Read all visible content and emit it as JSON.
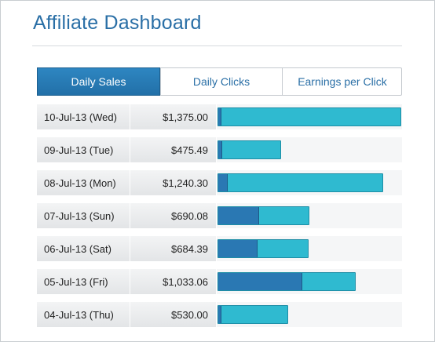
{
  "header": {
    "title": "Affiliate Dashboard"
  },
  "tabs": [
    {
      "label": "Daily Sales",
      "active": true
    },
    {
      "label": "Daily Clicks",
      "active": false
    },
    {
      "label": "Earnings per Click",
      "active": false
    }
  ],
  "sales": {
    "rows": [
      {
        "date": "10-Jul-13 (Wed)",
        "amount": "$1,375.00",
        "total": 1375.0,
        "dark_share": 0.01
      },
      {
        "date": "09-Jul-13 (Tue)",
        "amount": "$475.49",
        "total": 475.49,
        "dark_share": 0.05
      },
      {
        "date": "08-Jul-13 (Mon)",
        "amount": "$1,240.30",
        "total": 1240.3,
        "dark_share": 0.05
      },
      {
        "date": "07-Jul-13 (Sun)",
        "amount": "$690.08",
        "total": 690.08,
        "dark_share": 0.44
      },
      {
        "date": "06-Jul-13 (Sat)",
        "amount": "$684.39",
        "total": 684.39,
        "dark_share": 0.42
      },
      {
        "date": "05-Jul-13 (Fri)",
        "amount": "$1,033.06",
        "total": 1033.06,
        "dark_share": 0.6
      },
      {
        "date": "04-Jul-13 (Thu)",
        "amount": "$530.00",
        "total": 530.0,
        "dark_share": 0.02
      }
    ],
    "max_value": 1375.0
  },
  "colors": {
    "accent": "#2a6fa6",
    "bar_light": "#2fbad0",
    "bar_dark": "#2a78b3"
  }
}
